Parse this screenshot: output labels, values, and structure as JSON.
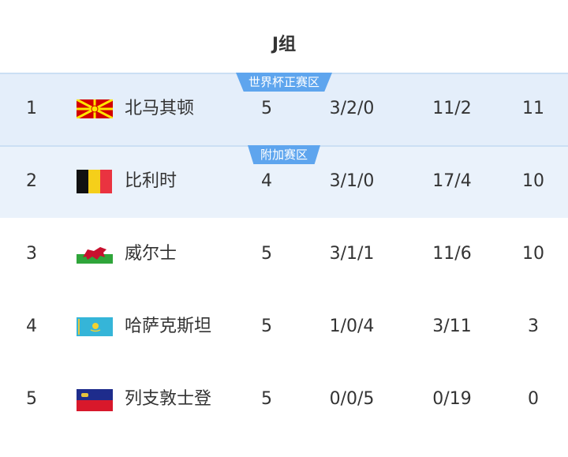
{
  "title": "J组",
  "badges": {
    "direct": "世界杯正赛区",
    "playoff": "附加赛区"
  },
  "colors": {
    "badge": "#5ea5ee",
    "highlight": "#e4eefa"
  },
  "rows": [
    {
      "rank": "1",
      "flag": "north-macedonia-flag",
      "team": "北马其顿",
      "played": "5",
      "record": "3/2/0",
      "goals": "11/2",
      "points": "11"
    },
    {
      "rank": "2",
      "flag": "belgium-flag",
      "team": "比利时",
      "played": "4",
      "record": "3/1/0",
      "goals": "17/4",
      "points": "10"
    },
    {
      "rank": "3",
      "flag": "wales-flag",
      "team": "威尔士",
      "played": "5",
      "record": "3/1/1",
      "goals": "11/6",
      "points": "10"
    },
    {
      "rank": "4",
      "flag": "kazakhstan-flag",
      "team": "哈萨克斯坦",
      "played": "5",
      "record": "1/0/4",
      "goals": "3/11",
      "points": "3"
    },
    {
      "rank": "5",
      "flag": "liechtenstein-flag",
      "team": "列支敦士登",
      "played": "5",
      "record": "0/0/5",
      "goals": "0/19",
      "points": "0"
    }
  ]
}
